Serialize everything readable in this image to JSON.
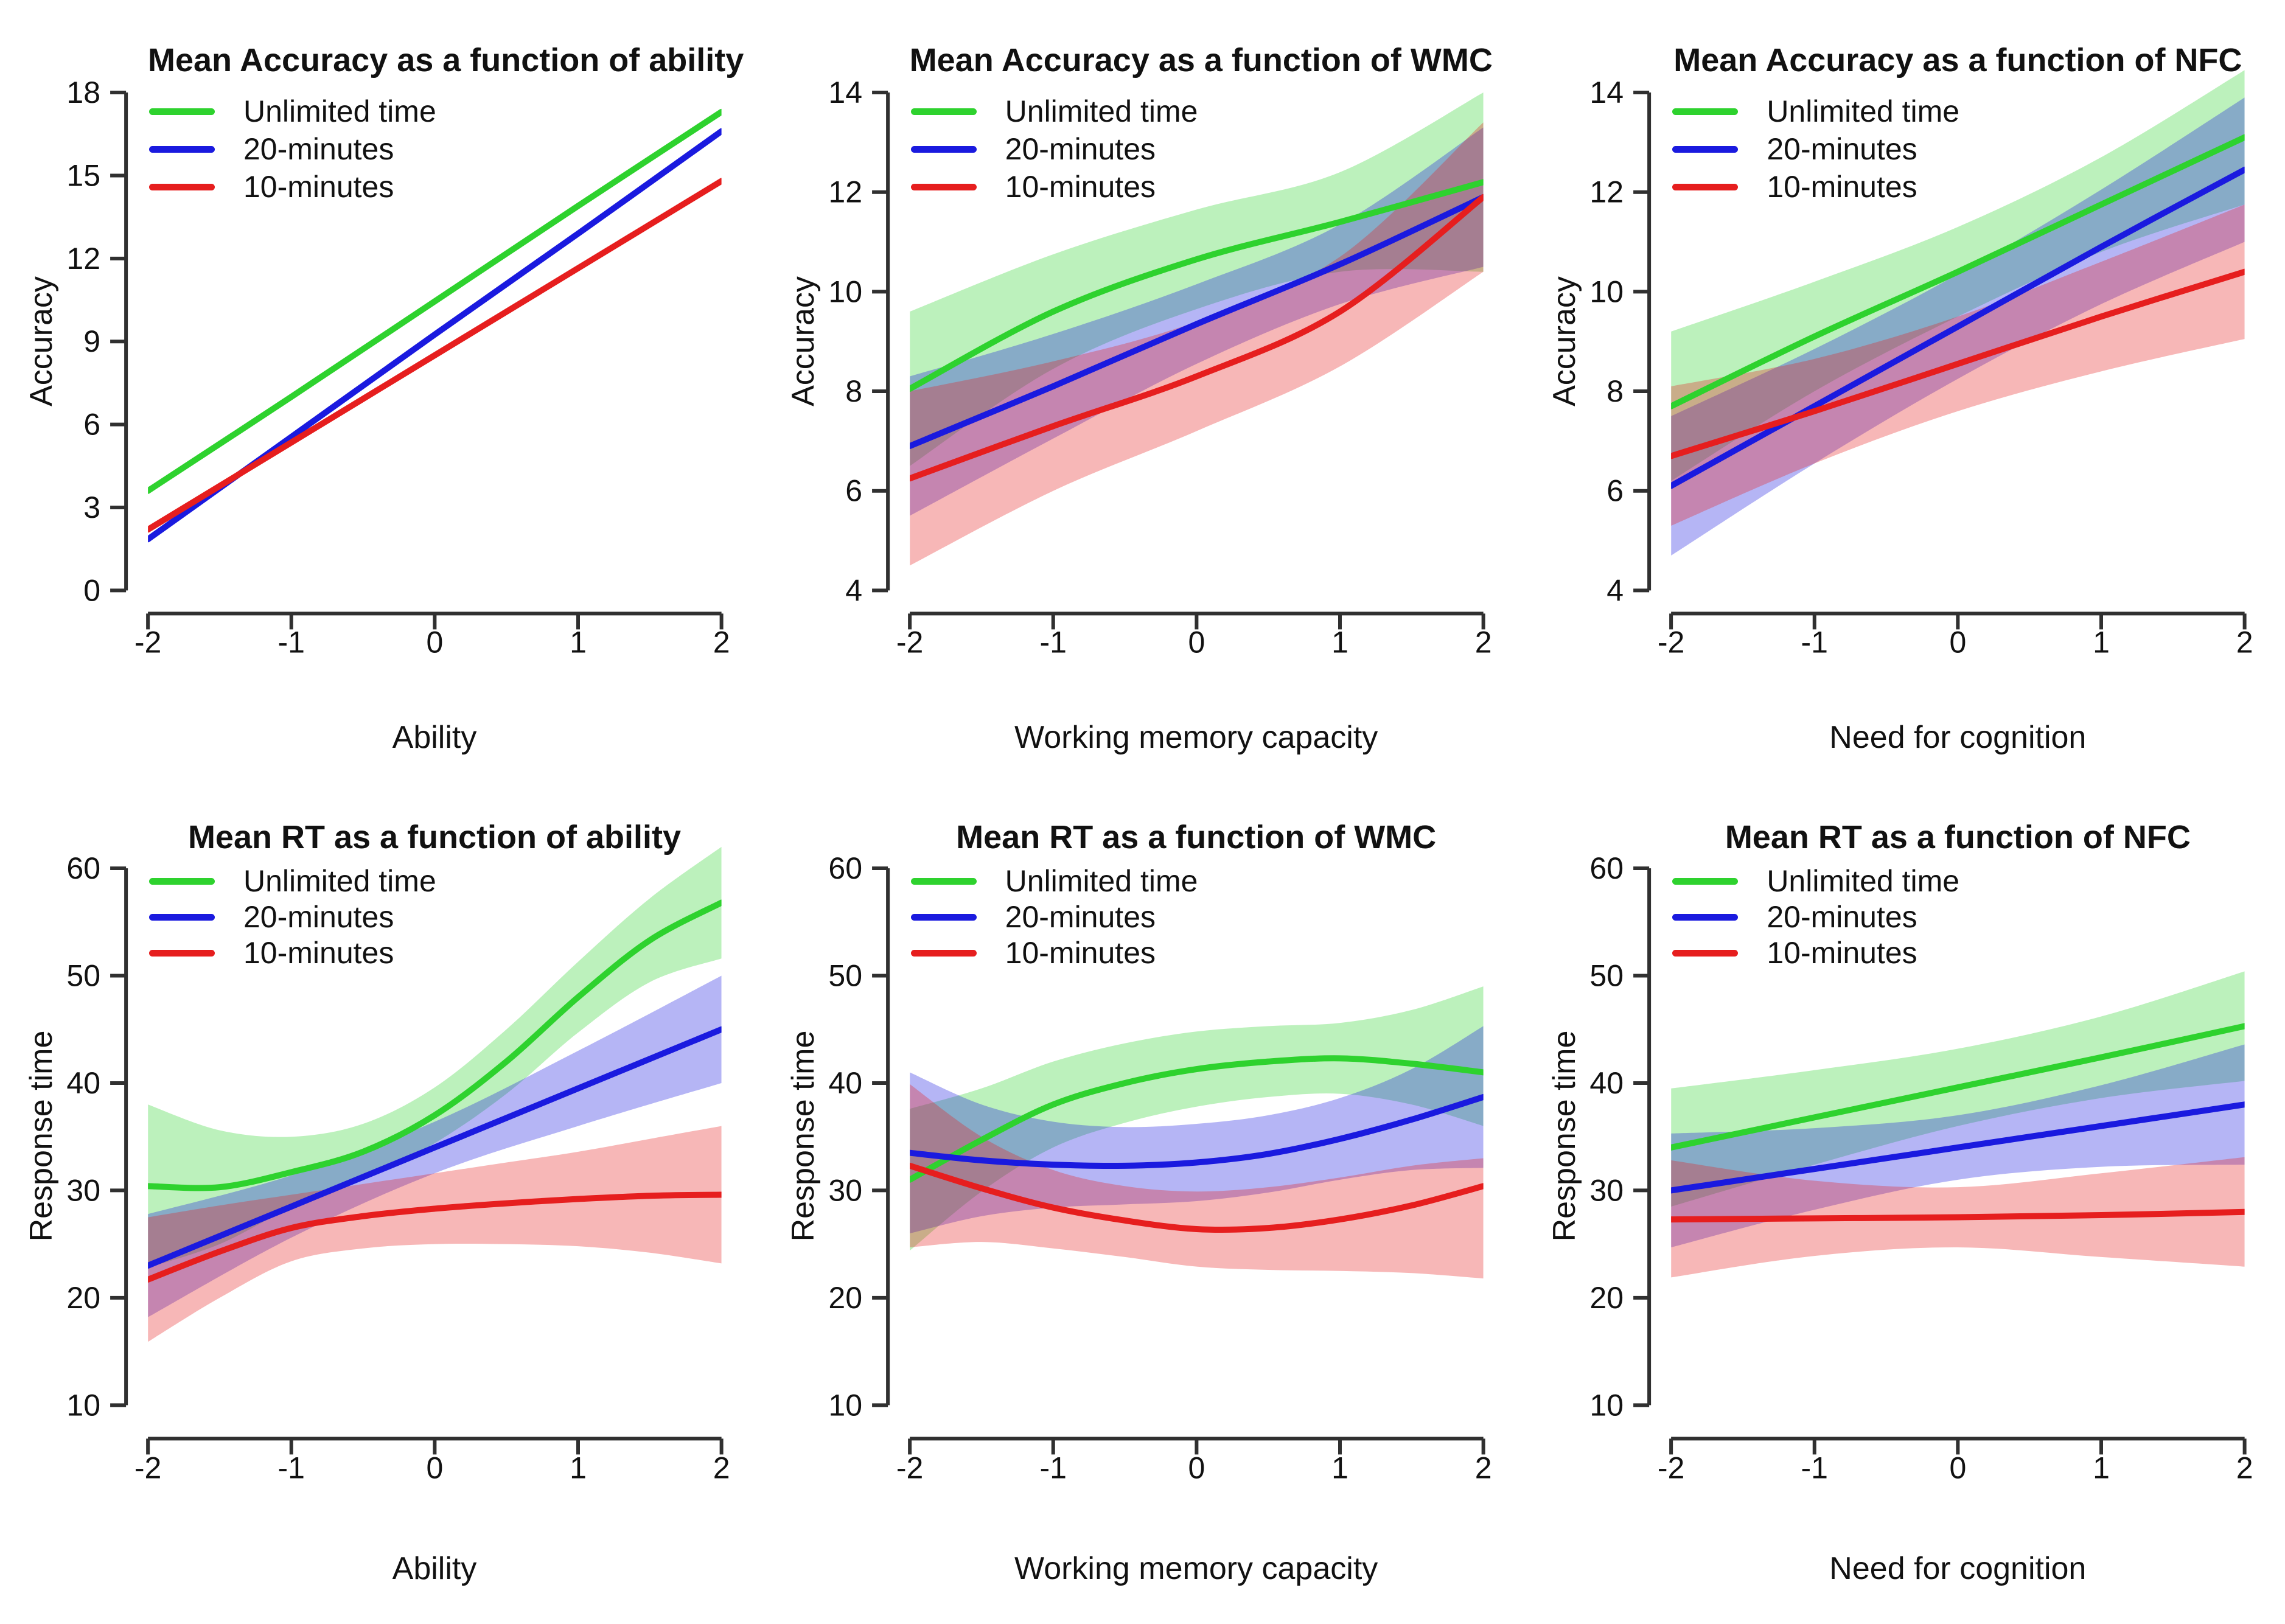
{
  "figure": {
    "background": "#ffffff",
    "rows": 2,
    "cols": 3
  },
  "colors": {
    "green": "#2ed22e",
    "blue": "#1a1adf",
    "red": "#e61e1e",
    "axis": "#303030",
    "text": "#111111",
    "band_opacity": 0.32
  },
  "legend": {
    "position": "topleft",
    "items": [
      {
        "label": "Unlimited time",
        "color": "green"
      },
      {
        "label": "20-minutes",
        "color": "blue"
      },
      {
        "label": "10-minutes",
        "color": "red"
      }
    ]
  },
  "chart_data": [
    {
      "type": "line",
      "title": "Mean Accuracy as a function of ability",
      "xlabel": "Ability",
      "ylabel": "Accuracy",
      "xlim": [
        -2,
        2
      ],
      "ylim": [
        0,
        18
      ],
      "xticks": [
        "-2",
        "-1",
        "0",
        "1",
        "2"
      ],
      "yticks": [
        "0",
        "3",
        "6",
        "9",
        "12",
        "15",
        "18"
      ],
      "grid": false,
      "legend_position": "topleft",
      "series": [
        {
          "name": "Unlimited time",
          "color": "green",
          "x": [
            -2,
            -1,
            0,
            1,
            2
          ],
          "y": [
            3.6,
            7.0,
            10.45,
            13.9,
            17.3
          ]
        },
        {
          "name": "20-minutes",
          "color": "blue",
          "x": [
            -2,
            -1,
            0,
            1,
            2
          ],
          "y": [
            1.85,
            5.55,
            9.25,
            12.9,
            16.6
          ]
        },
        {
          "name": "10-minutes",
          "color": "red",
          "x": [
            -2,
            -1,
            0,
            1,
            2
          ],
          "y": [
            2.2,
            5.35,
            8.5,
            11.65,
            14.8
          ]
        }
      ]
    },
    {
      "type": "line",
      "title": "Mean Accuracy as a function of WMC",
      "xlabel": "Working memory capacity",
      "ylabel": "Accuracy",
      "xlim": [
        -2,
        2
      ],
      "ylim": [
        4,
        14
      ],
      "xticks": [
        "-2",
        "-1",
        "0",
        "1",
        "2"
      ],
      "yticks": [
        "4",
        "6",
        "8",
        "10",
        "12",
        "14"
      ],
      "grid": false,
      "legend_position": "topleft",
      "series": [
        {
          "name": "Unlimited time",
          "color": "green",
          "x": [
            -2,
            -1,
            0,
            1,
            2
          ],
          "y": [
            8.05,
            9.6,
            10.65,
            11.4,
            12.2
          ],
          "band_upper": [
            9.6,
            10.75,
            11.65,
            12.4,
            14.0
          ],
          "band_lower": [
            6.5,
            8.45,
            9.65,
            10.4,
            10.4
          ]
        },
        {
          "name": "20-minutes",
          "color": "blue",
          "x": [
            -2,
            -1,
            0,
            1,
            2
          ],
          "y": [
            6.9,
            8.1,
            9.35,
            10.55,
            11.9
          ],
          "band_upper": [
            8.3,
            9.15,
            10.15,
            11.35,
            13.3
          ],
          "band_lower": [
            5.5,
            7.05,
            8.55,
            9.75,
            10.5
          ]
        },
        {
          "name": "10-minutes",
          "color": "red",
          "x": [
            -2,
            -1,
            0,
            1,
            2
          ],
          "y": [
            6.25,
            7.3,
            8.3,
            9.6,
            11.9
          ],
          "band_upper": [
            8.0,
            8.6,
            9.4,
            10.7,
            13.4
          ],
          "band_lower": [
            4.5,
            6.0,
            7.2,
            8.5,
            10.4
          ]
        }
      ]
    },
    {
      "type": "line",
      "title": "Mean Accuracy as a function of NFC",
      "xlabel": "Need for cognition",
      "ylabel": "Accuracy",
      "xlim": [
        -2,
        2
      ],
      "ylim": [
        4,
        14
      ],
      "xticks": [
        "-2",
        "-1",
        "0",
        "1",
        "2"
      ],
      "yticks": [
        "4",
        "6",
        "8",
        "10",
        "12",
        "14"
      ],
      "grid": false,
      "legend_position": "topleft",
      "series": [
        {
          "name": "Unlimited time",
          "color": "green",
          "x": [
            -2,
            -1,
            0,
            1,
            2
          ],
          "y": [
            7.7,
            9.1,
            10.4,
            11.75,
            13.1
          ],
          "band_upper": [
            9.2,
            10.2,
            11.3,
            12.7,
            14.45
          ],
          "band_lower": [
            6.2,
            8.0,
            9.5,
            10.8,
            11.75
          ]
        },
        {
          "name": "20-minutes",
          "color": "blue",
          "x": [
            -2,
            -1,
            0,
            1,
            2
          ],
          "y": [
            6.1,
            7.7,
            9.3,
            10.9,
            12.45
          ],
          "band_upper": [
            7.5,
            8.85,
            10.35,
            12.05,
            13.9
          ],
          "band_lower": [
            4.7,
            6.55,
            8.25,
            9.75,
            11.0
          ]
        },
        {
          "name": "10-minutes",
          "color": "red",
          "x": [
            -2,
            -1,
            0,
            1,
            2
          ],
          "y": [
            6.7,
            7.6,
            8.55,
            9.5,
            10.4
          ],
          "band_upper": [
            8.1,
            8.65,
            9.5,
            10.6,
            11.75
          ],
          "band_lower": [
            5.3,
            6.55,
            7.6,
            8.4,
            9.05
          ]
        }
      ]
    },
    {
      "type": "line",
      "title": "Mean RT as a function of ability",
      "xlabel": "Ability",
      "ylabel": "Response time",
      "xlim": [
        -2,
        2
      ],
      "ylim": [
        10,
        60
      ],
      "xticks": [
        "-2",
        "-1",
        "0",
        "1",
        "2"
      ],
      "yticks": [
        "10",
        "20",
        "30",
        "40",
        "50",
        "60"
      ],
      "grid": false,
      "legend_position": "topleft",
      "series": [
        {
          "name": "Unlimited time",
          "color": "green",
          "x": [
            -2,
            -1.5,
            -1,
            -0.5,
            0,
            0.5,
            1,
            1.5,
            2
          ],
          "y": [
            30.4,
            30.3,
            31.7,
            33.6,
            37.0,
            42.0,
            48.0,
            53.3,
            56.8
          ],
          "band_upper": [
            38.0,
            35.6,
            35.0,
            36.2,
            39.6,
            45.0,
            51.3,
            57.2,
            62.0
          ],
          "band_lower": [
            22.8,
            25.0,
            28.4,
            31.0,
            34.4,
            39.0,
            44.7,
            49.4,
            51.6
          ]
        },
        {
          "name": "20-minutes",
          "color": "blue",
          "x": [
            -2,
            -1,
            0,
            1,
            2
          ],
          "y": [
            23.0,
            28.5,
            34.0,
            39.5,
            45.0
          ],
          "band_upper": [
            27.8,
            31.4,
            36.4,
            43.0,
            50.0
          ],
          "band_lower": [
            18.2,
            25.6,
            31.6,
            36.0,
            40.0
          ]
        },
        {
          "name": "10-minutes",
          "color": "red",
          "x": [
            -2,
            -1.5,
            -1,
            -0.5,
            0,
            0.5,
            1,
            1.5,
            2
          ],
          "y": [
            21.7,
            24.3,
            26.5,
            27.6,
            28.3,
            28.8,
            29.2,
            29.5,
            29.6
          ],
          "band_upper": [
            27.5,
            28.6,
            29.6,
            30.6,
            31.6,
            32.6,
            33.6,
            34.8,
            36.0
          ],
          "band_lower": [
            15.9,
            20.0,
            23.4,
            24.6,
            25.0,
            25.0,
            24.8,
            24.2,
            23.2
          ]
        }
      ]
    },
    {
      "type": "line",
      "title": "Mean RT as a function of WMC",
      "xlabel": "Working memory capacity",
      "ylabel": "Response time",
      "xlim": [
        -2,
        2
      ],
      "ylim": [
        10,
        60
      ],
      "xticks": [
        "-2",
        "-1",
        "0",
        "1",
        "2"
      ],
      "yticks": [
        "10",
        "20",
        "30",
        "40",
        "50",
        "60"
      ],
      "grid": false,
      "legend_position": "topleft",
      "series": [
        {
          "name": "Unlimited time",
          "color": "green",
          "x": [
            -2,
            -1.5,
            -1,
            -0.5,
            0,
            0.5,
            1,
            1.5,
            2
          ],
          "y": [
            31.0,
            34.7,
            38.0,
            40.0,
            41.3,
            42.0,
            42.3,
            41.8,
            41.0
          ],
          "band_upper": [
            37.6,
            39.5,
            42.0,
            43.7,
            44.8,
            45.3,
            45.6,
            46.8,
            49.0
          ],
          "band_lower": [
            24.4,
            29.9,
            34.0,
            36.3,
            37.8,
            38.7,
            39.0,
            38.0,
            36.0
          ]
        },
        {
          "name": "20-minutes",
          "color": "blue",
          "x": [
            -2,
            -1.5,
            -1,
            -0.5,
            0,
            0.5,
            1,
            1.5,
            2
          ],
          "y": [
            33.5,
            32.8,
            32.4,
            32.3,
            32.6,
            33.4,
            34.8,
            36.6,
            38.7
          ],
          "band_upper": [
            41.0,
            38.0,
            36.4,
            35.9,
            36.2,
            37.0,
            38.6,
            41.3,
            45.3
          ],
          "band_lower": [
            26.0,
            27.6,
            28.4,
            28.7,
            29.0,
            29.8,
            31.0,
            31.9,
            32.1
          ]
        },
        {
          "name": "10-minutes",
          "color": "red",
          "x": [
            -2,
            -1.5,
            -1,
            -0.5,
            0,
            0.5,
            1,
            1.5,
            2
          ],
          "y": [
            32.3,
            30.2,
            28.4,
            27.2,
            26.4,
            26.5,
            27.3,
            28.6,
            30.4
          ],
          "band_upper": [
            39.9,
            35.0,
            31.9,
            30.4,
            29.9,
            30.3,
            31.2,
            32.3,
            33.0
          ],
          "band_lower": [
            24.7,
            25.2,
            24.6,
            23.8,
            22.9,
            22.6,
            22.5,
            22.3,
            21.8
          ]
        }
      ]
    },
    {
      "type": "line",
      "title": "Mean RT as a function of NFC",
      "xlabel": "Need for cognition",
      "ylabel": "Response time",
      "xlim": [
        -2,
        2
      ],
      "ylim": [
        10,
        60
      ],
      "xticks": [
        "-2",
        "-1",
        "0",
        "1",
        "2"
      ],
      "yticks": [
        "10",
        "20",
        "30",
        "40",
        "50",
        "60"
      ],
      "grid": false,
      "legend_position": "topleft",
      "series": [
        {
          "name": "Unlimited time",
          "color": "green",
          "x": [
            -2,
            -1,
            0,
            1,
            2
          ],
          "y": [
            34.0,
            36.8,
            39.6,
            42.4,
            45.3
          ],
          "band_upper": [
            39.5,
            41.2,
            43.2,
            46.2,
            50.4
          ],
          "band_lower": [
            28.5,
            32.4,
            36.0,
            38.6,
            40.2
          ]
        },
        {
          "name": "20-minutes",
          "color": "blue",
          "x": [
            -2,
            -1,
            0,
            1,
            2
          ],
          "y": [
            30.0,
            32.0,
            34.0,
            36.0,
            38.0
          ],
          "band_upper": [
            35.3,
            35.8,
            37.0,
            39.8,
            43.6
          ],
          "band_lower": [
            24.7,
            28.2,
            31.0,
            32.2,
            32.4
          ]
        },
        {
          "name": "10-minutes",
          "color": "red",
          "x": [
            -2,
            -1,
            0,
            1,
            2
          ],
          "y": [
            27.3,
            27.4,
            27.5,
            27.7,
            28.0
          ],
          "band_upper": [
            32.8,
            30.9,
            30.3,
            31.6,
            33.1
          ],
          "band_lower": [
            21.9,
            23.9,
            24.7,
            23.8,
            22.9
          ]
        }
      ]
    }
  ]
}
